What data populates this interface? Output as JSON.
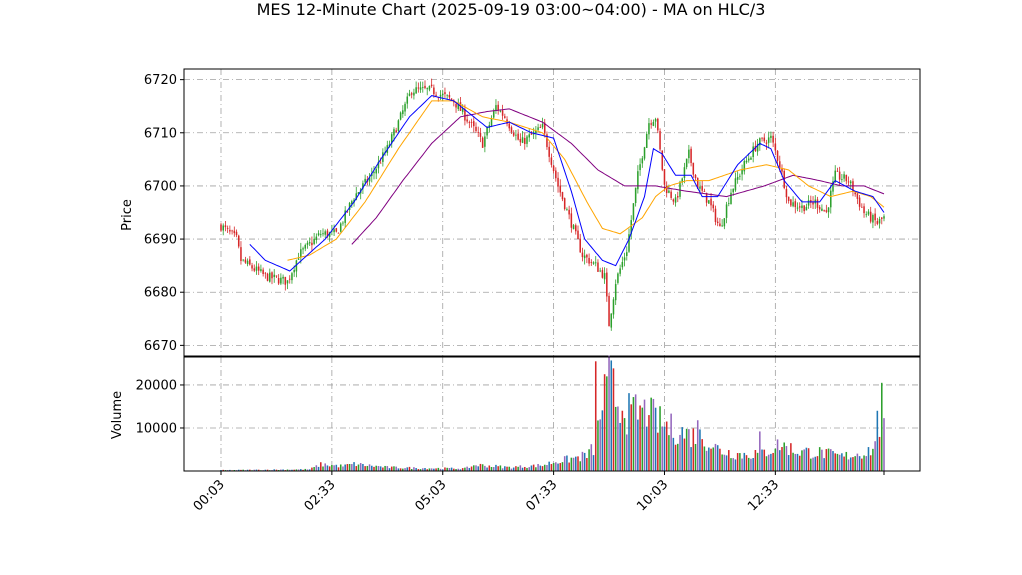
{
  "chart_data": {
    "title": "MES 12-Minute Chart (2025-09-19 03:00~04:00) - MA on HLC/3",
    "type": "candlestick",
    "price_panel": {
      "ylabel": "Price",
      "ylim": [
        6668,
        6722
      ],
      "yticks": [
        6670,
        6680,
        6690,
        6700,
        6710,
        6720
      ],
      "grid": true
    },
    "volume_panel": {
      "ylabel": "Volume",
      "ylim": [
        0,
        26500
      ],
      "yticks": [
        10000,
        20000
      ],
      "grid": true
    },
    "xticks": [
      {
        "label": "00:03",
        "index": 0
      },
      {
        "label": "02:33",
        "index": 50
      },
      {
        "label": "05:03",
        "index": 100
      },
      {
        "label": "07:33",
        "index": 150
      },
      {
        "label": "10:03",
        "index": 200
      },
      {
        "label": "12:33",
        "index": 250
      }
    ],
    "bar_count": 300,
    "colors": {
      "up": "#2ca02c",
      "down": "#d62728",
      "ma_fast": "#0000ff",
      "ma_mid": "#ffa500",
      "ma_slow": "#800080",
      "vol1": "#1f77b4",
      "vol2": "#d62728",
      "vol3": "#2ca02c",
      "vol4": "#9467bd"
    },
    "close_anchors": [
      [
        0,
        6692.5
      ],
      [
        7,
        6690
      ],
      [
        9,
        6686
      ],
      [
        20,
        6683
      ],
      [
        30,
        6682
      ],
      [
        35,
        6687
      ],
      [
        45,
        6691
      ],
      [
        52,
        6691
      ],
      [
        60,
        6698
      ],
      [
        68,
        6702
      ],
      [
        75,
        6707
      ],
      [
        80,
        6712
      ],
      [
        86,
        6718
      ],
      [
        95,
        6718
      ],
      [
        105,
        6716
      ],
      [
        112,
        6712
      ],
      [
        118,
        6708
      ],
      [
        124,
        6715
      ],
      [
        128,
        6713
      ],
      [
        135,
        6708
      ],
      [
        145,
        6711
      ],
      [
        152,
        6700
      ],
      [
        158,
        6693
      ],
      [
        163,
        6687
      ],
      [
        169,
        6685
      ],
      [
        173,
        6683
      ],
      [
        175,
        6674
      ],
      [
        178,
        6682
      ],
      [
        183,
        6688
      ],
      [
        188,
        6702
      ],
      [
        193,
        6712
      ],
      [
        196,
        6713
      ],
      [
        200,
        6700
      ],
      [
        205,
        6697
      ],
      [
        211,
        6706
      ],
      [
        215,
        6700
      ],
      [
        220,
        6697
      ],
      [
        225,
        6692
      ],
      [
        230,
        6699
      ],
      [
        236,
        6704
      ],
      [
        242,
        6708
      ],
      [
        248,
        6709
      ],
      [
        252,
        6704
      ],
      [
        256,
        6697
      ],
      [
        262,
        6696
      ],
      [
        268,
        6697
      ],
      [
        273,
        6695
      ],
      [
        277,
        6702
      ],
      [
        283,
        6701
      ],
      [
        290,
        6695
      ],
      [
        296,
        6693
      ],
      [
        299,
        6694
      ]
    ],
    "ma_fast": [
      [
        13,
        6689
      ],
      [
        20,
        6686
      ],
      [
        31,
        6684
      ],
      [
        47,
        6690
      ],
      [
        60,
        6697
      ],
      [
        72,
        6705
      ],
      [
        85,
        6713
      ],
      [
        95,
        6717
      ],
      [
        105,
        6716
      ],
      [
        120,
        6711
      ],
      [
        130,
        6712
      ],
      [
        140,
        6710
      ],
      [
        150,
        6709
      ],
      [
        158,
        6699
      ],
      [
        164,
        6690
      ],
      [
        172,
        6686
      ],
      [
        178,
        6685
      ],
      [
        184,
        6690
      ],
      [
        191,
        6698
      ],
      [
        195,
        6707
      ],
      [
        199,
        6706
      ],
      [
        205,
        6702
      ],
      [
        212,
        6702
      ],
      [
        217,
        6698
      ],
      [
        224,
        6698
      ],
      [
        233,
        6704
      ],
      [
        243,
        6708
      ],
      [
        248,
        6707
      ],
      [
        254,
        6701
      ],
      [
        262,
        6697
      ],
      [
        270,
        6697
      ],
      [
        277,
        6701
      ],
      [
        286,
        6699
      ],
      [
        294,
        6698
      ],
      [
        299,
        6695
      ]
    ],
    "ma_mid": [
      [
        30,
        6686
      ],
      [
        40,
        6687
      ],
      [
        52,
        6690
      ],
      [
        65,
        6697
      ],
      [
        80,
        6707
      ],
      [
        95,
        6716
      ],
      [
        105,
        6716
      ],
      [
        118,
        6713
      ],
      [
        130,
        6712
      ],
      [
        145,
        6710
      ],
      [
        155,
        6705
      ],
      [
        165,
        6697
      ],
      [
        172,
        6692
      ],
      [
        180,
        6691
      ],
      [
        190,
        6694
      ],
      [
        196,
        6698
      ],
      [
        202,
        6700
      ],
      [
        210,
        6701
      ],
      [
        220,
        6701
      ],
      [
        234,
        6703
      ],
      [
        246,
        6704
      ],
      [
        256,
        6703
      ],
      [
        265,
        6700
      ],
      [
        275,
        6698
      ],
      [
        285,
        6699
      ],
      [
        293,
        6698
      ],
      [
        299,
        6696
      ]
    ],
    "ma_slow": [
      [
        59,
        6689
      ],
      [
        70,
        6694
      ],
      [
        82,
        6701
      ],
      [
        95,
        6708
      ],
      [
        108,
        6713
      ],
      [
        120,
        6714
      ],
      [
        130,
        6714.5
      ],
      [
        145,
        6712
      ],
      [
        158,
        6708
      ],
      [
        170,
        6703
      ],
      [
        182,
        6700
      ],
      [
        196,
        6700
      ],
      [
        210,
        6699
      ],
      [
        228,
        6698
      ],
      [
        245,
        6700
      ],
      [
        258,
        6702
      ],
      [
        270,
        6701
      ],
      [
        280,
        6700
      ],
      [
        290,
        6700
      ],
      [
        299,
        6698.5
      ]
    ],
    "volume_anchors": [
      [
        0,
        200
      ],
      [
        40,
        400
      ],
      [
        45,
        1600
      ],
      [
        55,
        1200
      ],
      [
        60,
        1700
      ],
      [
        75,
        900
      ],
      [
        90,
        700
      ],
      [
        110,
        600
      ],
      [
        115,
        1500
      ],
      [
        130,
        900
      ],
      [
        145,
        1400
      ],
      [
        150,
        2200
      ],
      [
        160,
        3200
      ],
      [
        165,
        3800
      ],
      [
        168,
        5500
      ],
      [
        170,
        10000
      ],
      [
        172,
        17000
      ],
      [
        175,
        22500
      ],
      [
        178,
        18000
      ],
      [
        183,
        14000
      ],
      [
        190,
        14500
      ],
      [
        195,
        13000
      ],
      [
        200,
        11000
      ],
      [
        210,
        9000
      ],
      [
        218,
        8000
      ],
      [
        225,
        5000
      ],
      [
        235,
        4000
      ],
      [
        245,
        4500
      ],
      [
        252,
        6500
      ],
      [
        260,
        4800
      ],
      [
        270,
        4500
      ],
      [
        280,
        3500
      ],
      [
        290,
        4500
      ],
      [
        296,
        6000
      ],
      [
        298,
        16000
      ],
      [
        299,
        10000
      ]
    ],
    "volume_spikes": [
      [
        169,
        25500
      ],
      [
        171,
        12000
      ],
      [
        173,
        22500
      ],
      [
        174,
        22000
      ],
      [
        179,
        15000
      ],
      [
        182,
        12300
      ],
      [
        185,
        15500
      ],
      [
        193,
        13000
      ],
      [
        201,
        11500
      ],
      [
        215,
        11800
      ],
      [
        243,
        9200
      ],
      [
        296,
        14000
      ],
      [
        298,
        20500
      ]
    ]
  }
}
